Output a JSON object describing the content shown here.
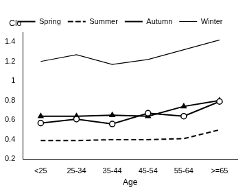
{
  "chart_data": {
    "type": "line",
    "x_label": "Age",
    "y_label": "Clo",
    "categories": [
      "<25",
      "25-34",
      "35-44",
      "45-54",
      "55-64",
      ">=65"
    ],
    "series": [
      {
        "name": "Spring",
        "color": "#000000",
        "marker": "circle",
        "line_style": "solid",
        "values": [
          0.57,
          0.61,
          0.56,
          0.67,
          0.64,
          0.79
        ]
      },
      {
        "name": "Summer",
        "color": "#000000",
        "marker": "none",
        "line_style": "dashed",
        "values": [
          0.39,
          0.39,
          0.4,
          0.4,
          0.41,
          0.5
        ]
      },
      {
        "name": "Autumn",
        "color": "#000000",
        "marker": "triangle",
        "line_style": "solid",
        "values": [
          0.64,
          0.64,
          0.65,
          0.64,
          0.74,
          0.8
        ]
      },
      {
        "name": "Winter",
        "color": "#000000",
        "marker": "none",
        "line_style": "solid",
        "values": [
          1.2,
          1.27,
          1.17,
          1.22,
          1.32,
          1.42
        ]
      }
    ],
    "ylim": [
      0.2,
      1.5
    ],
    "yticks": [
      0.2,
      0.4,
      0.6,
      0.8,
      1,
      1.2,
      1.4
    ],
    "grid": false,
    "legend": "top"
  }
}
